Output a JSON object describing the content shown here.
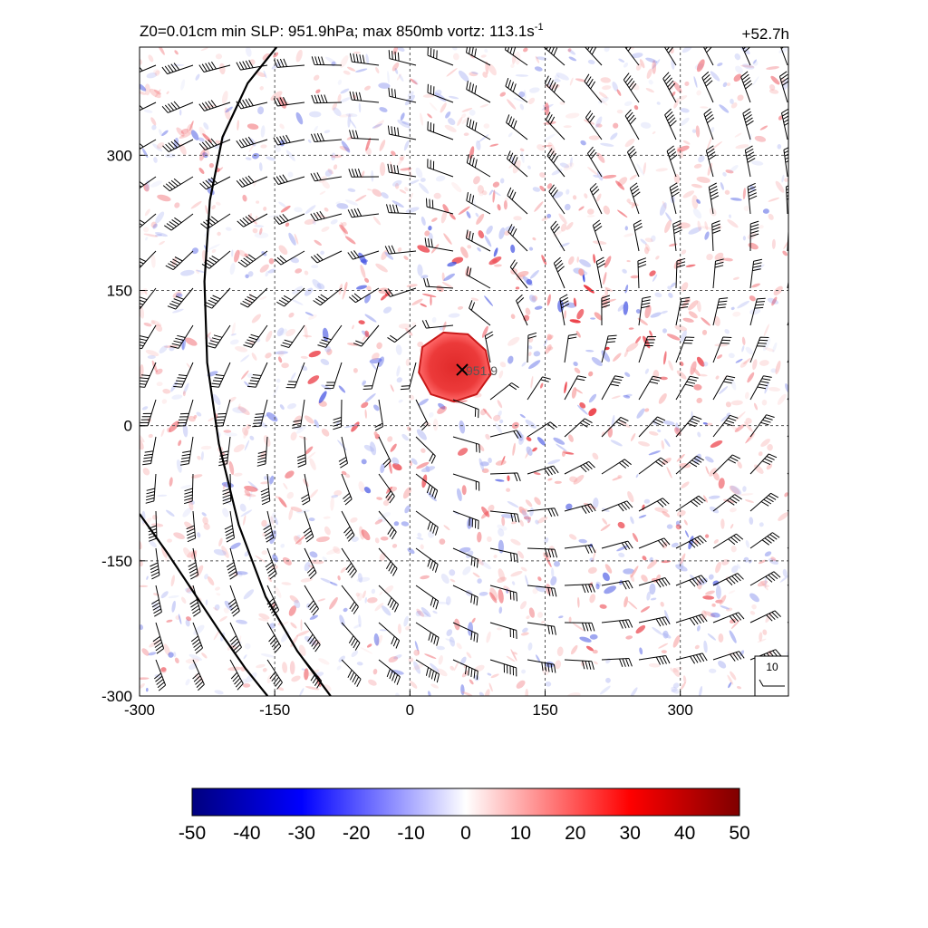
{
  "header": {
    "title_main": "Z0=0.01cm  min SLP: 951.9hPa; max 850mb vortz: 113.1s",
    "title_sup": "-1",
    "time_label": "+52.7h"
  },
  "chart_data": {
    "type": "heatmap",
    "field": "850mb relative vorticity with wind barbs",
    "xlim": [
      -300,
      420
    ],
    "ylim": [
      -300,
      420
    ],
    "x_ticks": [
      -300,
      -150,
      0,
      150,
      300
    ],
    "y_ticks": [
      -300,
      -150,
      0,
      150,
      300
    ],
    "x_tick_labels": [
      "-300",
      "-150",
      "0",
      "150",
      "300"
    ],
    "y_tick_labels": [
      "-300",
      "-150",
      "0",
      "150",
      "300"
    ],
    "grid": true,
    "grid_style": "dashed",
    "center_marker": {
      "symbol": "x",
      "x": 58,
      "y": 62,
      "label": "951.9"
    },
    "core": {
      "cx": 50,
      "cy": 65,
      "radius": 42
    },
    "coastlines": [
      [
        [
          -148,
          420
        ],
        [
          -180,
          380
        ],
        [
          -208,
          320
        ],
        [
          -222,
          250
        ],
        [
          -228,
          160
        ],
        [
          -225,
          70
        ],
        [
          -212,
          -20
        ],
        [
          -190,
          -110
        ],
        [
          -160,
          -190
        ],
        [
          -125,
          -250
        ],
        [
          -88,
          -300
        ]
      ],
      [
        [
          -300,
          -98
        ],
        [
          -270,
          -140
        ],
        [
          -240,
          -185
        ],
        [
          -210,
          -230
        ],
        [
          -182,
          -270
        ],
        [
          -158,
          -300
        ]
      ]
    ],
    "barb_reference": {
      "label": "10"
    },
    "colorbar": {
      "min": -50,
      "max": 50,
      "ticks": [
        -50,
        -40,
        -30,
        -20,
        -10,
        0,
        10,
        20,
        30,
        40,
        50
      ],
      "tick_labels": [
        "-50",
        "-40",
        "-30",
        "-20",
        "-10",
        "0",
        "10",
        "20",
        "30",
        "40",
        "50"
      ],
      "colors": [
        "#00007f",
        "#0000ff",
        "#ffffff",
        "#ff0000",
        "#7f0000"
      ]
    }
  }
}
